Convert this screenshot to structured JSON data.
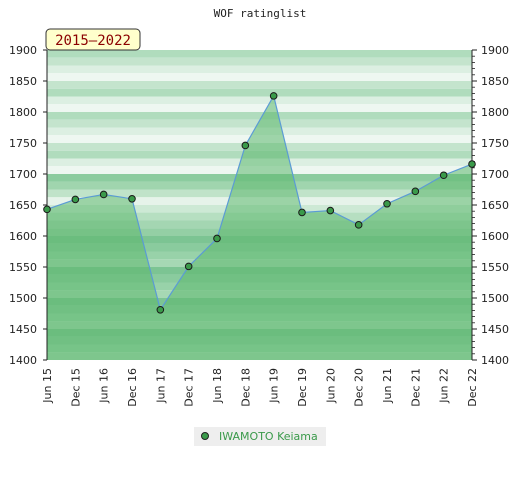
{
  "chart_data": {
    "type": "area",
    "title": "WOF ratinglist",
    "period_label": "2015–2022",
    "ylim": [
      1400,
      1900
    ],
    "yticks": [
      1400,
      1450,
      1500,
      1550,
      1600,
      1650,
      1700,
      1750,
      1800,
      1850,
      1900
    ],
    "categories": [
      "Jun 15",
      "Dec 15",
      "Jun 16",
      "Dec 16",
      "Jun 17",
      "Dec 17",
      "Jun 18",
      "Dec 18",
      "Jun 19",
      "Dec 19",
      "Jun 20",
      "Dec 20",
      "Jun 21",
      "Dec 21",
      "Jun 22",
      "Dec 22"
    ],
    "series": [
      {
        "name": "IWAMOTO Keiama",
        "values": [
          1643,
          1659,
          1667,
          1660,
          1481,
          1551,
          1596,
          1746,
          1826,
          1638,
          1641,
          1618,
          1652,
          1672,
          1698,
          1716
        ]
      }
    ],
    "legend_position": "bottom-center",
    "grid": true,
    "colors": {
      "line": "#5b9bd5",
      "marker_fill": "#3a9a4a",
      "area": "#5cb86e",
      "legend_text": "#3a9a4a",
      "period_text": "#8b0000",
      "period_bg": "#ffffcc"
    }
  }
}
